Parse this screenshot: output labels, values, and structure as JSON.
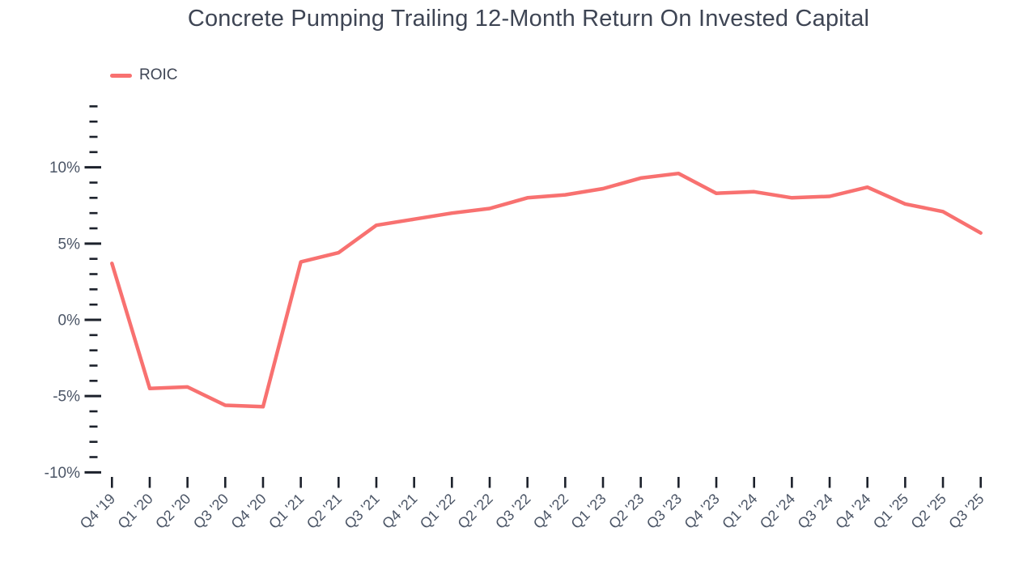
{
  "chart_data": {
    "type": "line",
    "title": "Concrete Pumping Trailing 12-Month Return On Invested Capital",
    "xlabel": "",
    "ylabel": "",
    "unit": "%",
    "grid": false,
    "categories": [
      "Q4 '19",
      "Q1 '20",
      "Q2 '20",
      "Q3 '20",
      "Q4 '20",
      "Q1 '21",
      "Q2 '21",
      "Q3 '21",
      "Q4 '21",
      "Q1 '22",
      "Q2 '22",
      "Q3 '22",
      "Q4 '22",
      "Q1 '23",
      "Q2 '23",
      "Q3 '23",
      "Q4 '23",
      "Q1 '24",
      "Q2 '24",
      "Q3 '24",
      "Q4 '24",
      "Q1 '25",
      "Q2 '25",
      "Q3 '25"
    ],
    "series": [
      {
        "name": "ROIC",
        "color": "#f87170",
        "values": [
          3.7,
          -4.5,
          -4.4,
          -5.6,
          -5.7,
          3.8,
          4.4,
          6.2,
          6.6,
          7.0,
          7.3,
          8.0,
          8.2,
          8.6,
          9.3,
          9.6,
          8.3,
          8.4,
          8.0,
          8.1,
          8.7,
          7.6,
          7.1,
          5.7
        ]
      }
    ],
    "y_axis": {
      "min": -10,
      "max": 14,
      "minor_step": 1,
      "major_step": 5,
      "major_tick_labels": [
        "-10%",
        "-5%",
        "0%",
        "5%",
        "10%"
      ],
      "label_suffix": "%"
    },
    "legend": {
      "position": "top-left",
      "items": [
        {
          "label": "ROIC",
          "color": "#f87170"
        }
      ]
    }
  },
  "colors": {
    "background": "#ffffff",
    "line": "#f87170",
    "title": "#3e4554",
    "axis_labels": "#4b5566",
    "axis_ticks": "#1c212b"
  }
}
